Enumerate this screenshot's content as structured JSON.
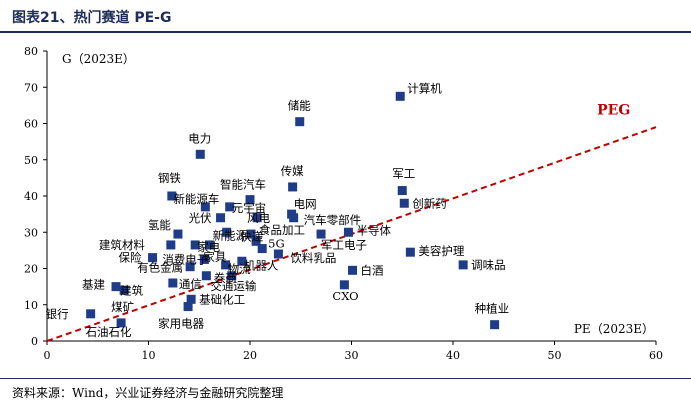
{
  "header": {
    "title": "图表21、热门赛道 PE-G"
  },
  "footer": {
    "source": "资料来源：Wind，兴业证券经济与金融研究院整理"
  },
  "chart_data": {
    "type": "scatter",
    "title": "图表21、热门赛道 PE-G",
    "xlabel": "PE（2023E）",
    "ylabel": "G（2023E）",
    "xlim": [
      0,
      60
    ],
    "ylim": [
      0,
      80
    ],
    "xticks": [
      0,
      10,
      20,
      30,
      40,
      50,
      60
    ],
    "yticks": [
      0,
      10,
      20,
      30,
      40,
      50,
      60,
      70,
      80
    ],
    "grid": false,
    "marker_color": "#1f3c88",
    "points": [
      {
        "label": "计算机",
        "x": 34.8,
        "y": 67.5
      },
      {
        "label": "储能",
        "x": 24.9,
        "y": 60.5
      },
      {
        "label": "电力",
        "x": 15.1,
        "y": 51.5
      },
      {
        "label": "传媒",
        "x": 24.2,
        "y": 42.5
      },
      {
        "label": "军工",
        "x": 35.0,
        "y": 41.5
      },
      {
        "label": "创新药",
        "x": 35.2,
        "y": 38.0
      },
      {
        "label": "钢铁",
        "x": 12.3,
        "y": 40.0
      },
      {
        "label": "智能汽车",
        "x": 20.0,
        "y": 39.0
      },
      {
        "label": "新能源车",
        "x": 15.6,
        "y": 37.0
      },
      {
        "label": "元宇宙",
        "x": 18.0,
        "y": 37.0
      },
      {
        "label": "电网",
        "x": 24.1,
        "y": 35.0
      },
      {
        "label": "汽车零部件",
        "x": 24.3,
        "y": 34.0
      },
      {
        "label": "光伏",
        "x": 17.1,
        "y": 34.0
      },
      {
        "label": "风电",
        "x": 20.7,
        "y": 34.0
      },
      {
        "label": "氢能",
        "x": 12.9,
        "y": 29.5
      },
      {
        "label": "新能源",
        "x": 17.7,
        "y": 30.0
      },
      {
        "label": "食品加工",
        "x": 20.1,
        "y": 29.5
      },
      {
        "label": "半导体",
        "x": 29.7,
        "y": 30.0
      },
      {
        "label": "军工电子",
        "x": 27.0,
        "y": 29.5
      },
      {
        "label": "建筑材料",
        "x": 12.2,
        "y": 26.5
      },
      {
        "label": "家电",
        "x": 14.6,
        "y": 26.5
      },
      {
        "label": "家具",
        "x": 16.0,
        "y": 26.5
      },
      {
        "label": "快递",
        "x": 20.6,
        "y": 27.5
      },
      {
        "label": "5G",
        "x": 21.2,
        "y": 25.5
      },
      {
        "label": "保险",
        "x": 10.4,
        "y": 23.0
      },
      {
        "label": "消费电子",
        "x": 15.5,
        "y": 22.5
      },
      {
        "label": "机器人",
        "x": 19.2,
        "y": 22.0
      },
      {
        "label": "饮料乳品",
        "x": 22.8,
        "y": 24.0
      },
      {
        "label": "美容护理",
        "x": 35.8,
        "y": 24.5
      },
      {
        "label": "调味品",
        "x": 41.0,
        "y": 21.0
      },
      {
        "label": "有色金属",
        "x": 14.1,
        "y": 20.5
      },
      {
        "label": "物流",
        "x": 17.6,
        "y": 21.0
      },
      {
        "label": "白酒",
        "x": 30.1,
        "y": 19.5
      },
      {
        "label": "通信",
        "x": 12.4,
        "y": 16.0
      },
      {
        "label": "交通运输",
        "x": 15.7,
        "y": 18.0
      },
      {
        "label": "券商",
        "x": 18.2,
        "y": 18.0
      },
      {
        "label": "基建",
        "x": 6.8,
        "y": 15.0
      },
      {
        "label": "建筑",
        "x": 7.6,
        "y": 14.0
      },
      {
        "label": "基础化工",
        "x": 14.2,
        "y": 11.5
      },
      {
        "label": "CXO",
        "x": 29.3,
        "y": 15.5
      },
      {
        "label": "银行",
        "x": 4.3,
        "y": 7.5
      },
      {
        "label": "煤矿",
        "x": 7.3,
        "y": 5.0
      },
      {
        "label": "家用电器",
        "x": 13.9,
        "y": 9.5
      },
      {
        "label": "种植业",
        "x": 44.1,
        "y": 4.5
      }
    ],
    "reference_line": {
      "label": "PEG",
      "from": [
        0,
        0
      ],
      "to": [
        60,
        59
      ],
      "color": "#c00000",
      "style": "dashed"
    }
  }
}
